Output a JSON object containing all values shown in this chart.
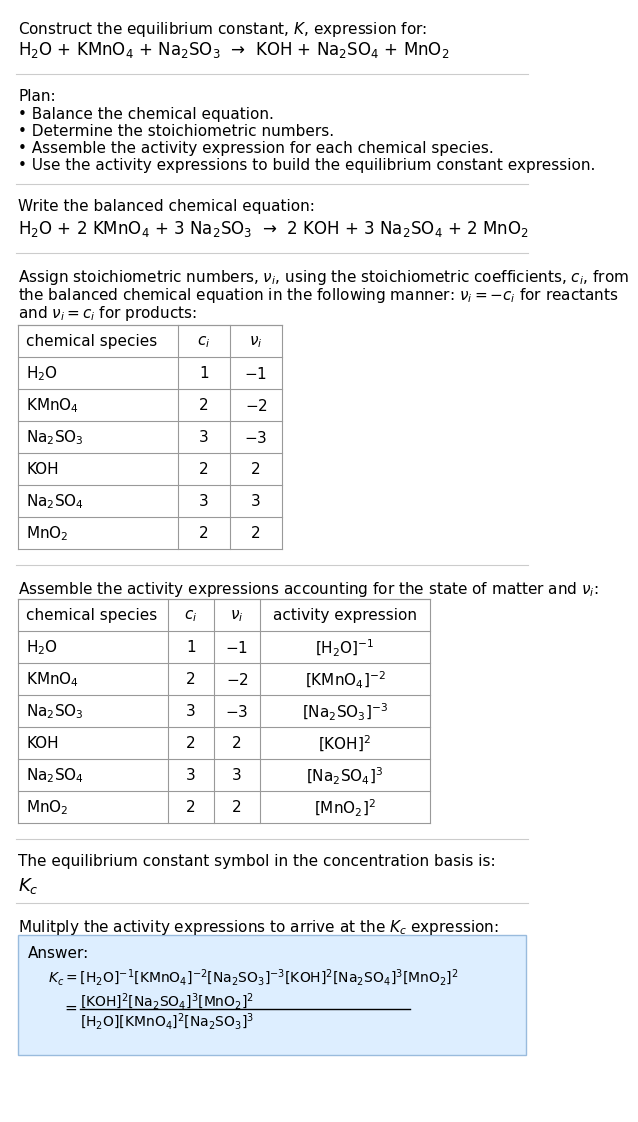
{
  "title_line1": "Construct the equilibrium constant, $K$, expression for:",
  "reaction_unbalanced": "H$_2$O + KMnO$_4$ + Na$_2$SO$_3$  →  KOH + Na$_2$SO$_4$ + MnO$_2$",
  "plan_header": "Plan:",
  "plan_items": [
    "• Balance the chemical equation.",
    "• Determine the stoichiometric numbers.",
    "• Assemble the activity expression for each chemical species.",
    "• Use the activity expressions to build the equilibrium constant expression."
  ],
  "balanced_header": "Write the balanced chemical equation:",
  "reaction_balanced": "H$_2$O + 2 KMnO$_4$ + 3 Na$_2$SO$_3$  →  2 KOH + 3 Na$_2$SO$_4$ + 2 MnO$_2$",
  "stoich_header_lines": [
    "Assign stoichiometric numbers, $\\nu_i$, using the stoichiometric coefficients, $c_i$, from",
    "the balanced chemical equation in the following manner: $\\nu_i = -c_i$ for reactants",
    "and $\\nu_i = c_i$ for products:"
  ],
  "table1_cols": [
    "chemical species",
    "$c_i$",
    "$\\nu_i$"
  ],
  "table1_data": [
    [
      "H$_2$O",
      "1",
      "$-1$"
    ],
    [
      "KMnO$_4$",
      "2",
      "$-2$"
    ],
    [
      "Na$_2$SO$_3$",
      "3",
      "$-3$"
    ],
    [
      "KOH",
      "2",
      "2"
    ],
    [
      "Na$_2$SO$_4$",
      "3",
      "3"
    ],
    [
      "MnO$_2$",
      "2",
      "2"
    ]
  ],
  "activity_header": "Assemble the activity expressions accounting for the state of matter and $\\nu_i$:",
  "table2_cols": [
    "chemical species",
    "$c_i$",
    "$\\nu_i$",
    "activity expression"
  ],
  "table2_data": [
    [
      "H$_2$O",
      "1",
      "$-1$",
      "[H$_2$O]$^{-1}$"
    ],
    [
      "KMnO$_4$",
      "2",
      "$-2$",
      "[KMnO$_4$]$^{-2}$"
    ],
    [
      "Na$_2$SO$_3$",
      "3",
      "$-3$",
      "[Na$_2$SO$_3$]$^{-3}$"
    ],
    [
      "KOH",
      "2",
      "2",
      "[KOH]$^2$"
    ],
    [
      "Na$_2$SO$_4$",
      "3",
      "3",
      "[Na$_2$SO$_4$]$^3$"
    ],
    [
      "MnO$_2$",
      "2",
      "2",
      "[MnO$_2$]$^2$"
    ]
  ],
  "kc_symbol_header": "The equilibrium constant symbol in the concentration basis is:",
  "kc_symbol": "$K_c$",
  "multiply_header": "Mulitply the activity expressions to arrive at the $K_c$ expression:",
  "answer_label": "Answer:",
  "bg_color": "#ffffff",
  "answer_box_color": "#ddeeff",
  "answer_box_border": "#99bbdd",
  "font_size": 11,
  "font_size_reaction": 12,
  "line_color": "#cccccc",
  "table_line_color": "#999999"
}
